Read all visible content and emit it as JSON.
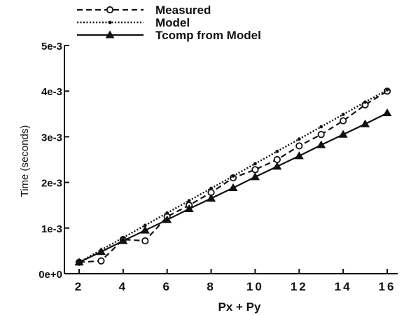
{
  "chart_data": {
    "type": "line",
    "xlabel": "Px + Py",
    "ylabel": "Time (seconds)",
    "xlim": [
      2,
      16.5
    ],
    "ylim": [
      0,
      0.005
    ],
    "x_ticks": [
      2,
      4,
      6,
      8,
      10,
      12,
      14,
      16
    ],
    "x_tick_labels": [
      "2",
      "4",
      "6",
      "8",
      "10",
      "12",
      "14",
      "16"
    ],
    "y_ticks": [
      0,
      0.001,
      0.002,
      0.003,
      0.004,
      0.005
    ],
    "y_tick_labels": [
      "0e+0",
      "1e-3",
      "2e-3",
      "3e-3",
      "4e-3",
      "5e-3"
    ],
    "legend_position": "top-left",
    "grid": false,
    "series": [
      {
        "name": "Measured",
        "style": "dashed",
        "marker": "open-circle",
        "x": [
          2,
          3,
          4,
          5,
          6,
          7,
          8,
          9,
          10,
          11,
          12,
          13,
          14,
          15,
          16
        ],
        "y": [
          0.00025,
          0.00028,
          0.00075,
          0.00072,
          0.00125,
          0.0015,
          0.00178,
          0.0021,
          0.00228,
          0.0025,
          0.0028,
          0.00305,
          0.00335,
          0.0037,
          0.004
        ]
      },
      {
        "name": "Model",
        "style": "dotted",
        "marker": "small-dot",
        "x": [
          2,
          3,
          4,
          5,
          6,
          7,
          8,
          9,
          10,
          11,
          12,
          13,
          14,
          15,
          16
        ],
        "y": [
          0.00025,
          0.00052,
          0.00079,
          0.00106,
          0.00133,
          0.0016,
          0.00187,
          0.00214,
          0.00241,
          0.00268,
          0.00295,
          0.00322,
          0.00349,
          0.00376,
          0.00403
        ]
      },
      {
        "name": "Tcomp from Model",
        "style": "solid",
        "marker": "filled-triangle",
        "x": [
          2,
          3,
          4,
          5,
          6,
          7,
          8,
          9,
          10,
          11,
          12,
          13,
          14,
          15,
          16
        ],
        "y": [
          0.00025,
          0.00048,
          0.00072,
          0.00095,
          0.00118,
          0.00142,
          0.00165,
          0.00188,
          0.00212,
          0.00235,
          0.00258,
          0.00282,
          0.00305,
          0.00328,
          0.00352
        ]
      }
    ]
  }
}
